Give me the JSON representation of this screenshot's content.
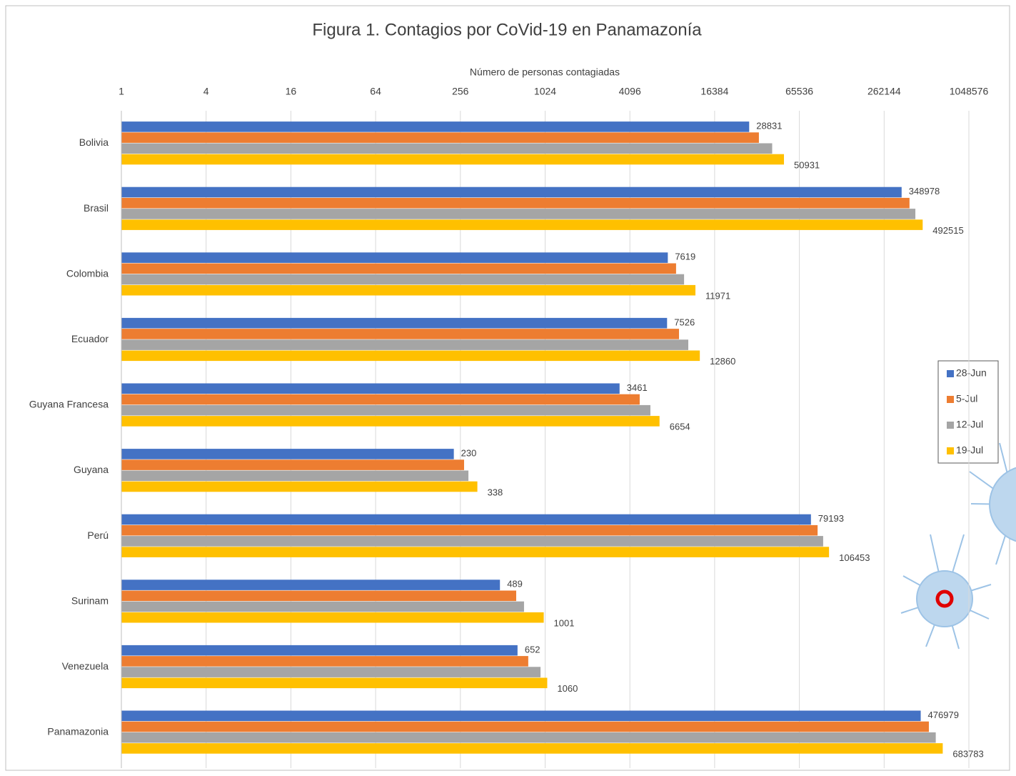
{
  "chart_data": {
    "type": "bar",
    "orientation": "horizontal",
    "title": "Figura 1. Contagios por CoVid-19 en Panamazonía",
    "x_label": "Número de personas contagiadas",
    "x_scale": "log",
    "xlim": [
      1,
      1048576
    ],
    "xticks": [
      1,
      4,
      16,
      64,
      256,
      1024,
      4096,
      16384,
      65536,
      262144,
      1048576
    ],
    "grid": true,
    "legend_position": "right",
    "categories": [
      "Bolivia",
      "Brasil",
      "Colombia",
      "Ecuador",
      "Guyana Francesa",
      "Guyana",
      "Perú",
      "Surinam",
      "Venezuela",
      "Panamazonia"
    ],
    "series": [
      {
        "name": "28-Jun",
        "color": "#4472c4",
        "show_labels": true,
        "values": [
          28831,
          348978,
          7619,
          7526,
          3461,
          230,
          79193,
          489,
          652,
          476979
        ]
      },
      {
        "name": "5-Jul",
        "color": "#ed7d31",
        "show_labels": false,
        "values": [
          33800,
          397000,
          8720,
          9150,
          4810,
          272,
          88300,
          638,
          777,
          545000
        ]
      },
      {
        "name": "12-Jul",
        "color": "#a5a5a5",
        "show_labels": false,
        "values": [
          42000,
          437000,
          9940,
          10650,
          5730,
          292,
          96700,
          725,
          950,
          610000
        ]
      },
      {
        "name": "19-Jul",
        "color": "#ffc000",
        "show_labels": true,
        "values": [
          50931,
          492515,
          11971,
          12860,
          6654,
          338,
          106453,
          1001,
          1060,
          683783
        ]
      }
    ]
  }
}
